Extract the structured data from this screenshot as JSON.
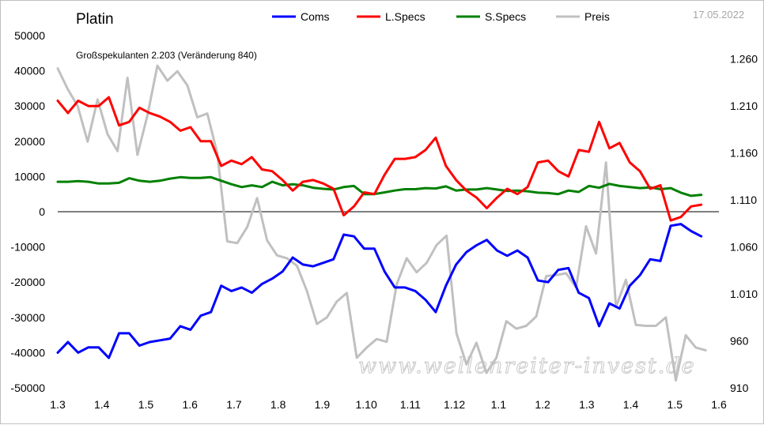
{
  "chart_data": {
    "type": "line",
    "title": "Platin",
    "date": "17.05.2022",
    "annotation": "Großspekulanten 2.203 (Veränderung 840)",
    "watermark": "www.wellenreiter-invest.de",
    "xlabels": [
      "1.3",
      "1.4",
      "1.5",
      "1.6",
      "1.7",
      "1.8",
      "1.9",
      "1.10",
      "1.11",
      "1.12",
      "1.1",
      "1.2",
      "1.3",
      "1.4",
      "1.5",
      "1.6"
    ],
    "y_left": {
      "min": -50000,
      "max": 50000,
      "step": 10000,
      "tick_labels": [
        "50000",
        "40000",
        "30000",
        "20000",
        "10000",
        "0",
        "-10000",
        "-20000",
        "-30000",
        "-40000",
        "-50000"
      ]
    },
    "y_right": {
      "min": 910,
      "max": 1285,
      "ticks": [
        1260,
        1210,
        1160,
        1110,
        1060,
        1010,
        960,
        910
      ],
      "tick_labels": [
        "1.260",
        "1.210",
        "1.160",
        "1.110",
        "1.060",
        "1.010",
        "960",
        "910"
      ]
    },
    "x_range": [
      0,
      15
    ],
    "zero_line": true,
    "series": [
      {
        "name": "Coms",
        "color": "#0000ff",
        "axis": "left",
        "values": [
          -40000,
          -37000,
          -40000,
          -38500,
          -38500,
          -41500,
          -34500,
          -34500,
          -38000,
          -37000,
          -36500,
          -36000,
          -32500,
          -33500,
          -29500,
          -28500,
          -21000,
          -22500,
          -21500,
          -23000,
          -20500,
          -19000,
          -17000,
          -13000,
          -15000,
          -15500,
          -14500,
          -13500,
          -6500,
          -7000,
          -10500,
          -10500,
          -17000,
          -21500,
          -21500,
          -22500,
          -25000,
          -28500,
          -21000,
          -15000,
          -11500,
          -9500,
          -8000,
          -11000,
          -12500,
          -11000,
          -13000,
          -19500,
          -20000,
          -16500,
          -16000,
          -23000,
          -24500,
          -32500,
          -26000,
          -27500,
          -21000,
          -18000,
          -13500,
          -14000,
          -4000,
          -3500,
          -5500,
          -7000
        ]
      },
      {
        "name": "L.Specs",
        "color": "#ff0000",
        "axis": "left",
        "values": [
          31500,
          28000,
          31500,
          30000,
          30000,
          32500,
          24500,
          25500,
          29500,
          28000,
          27000,
          25500,
          23000,
          24000,
          20000,
          20000,
          13000,
          14500,
          13500,
          15500,
          12000,
          11500,
          9000,
          6000,
          8500,
          9000,
          8000,
          6500,
          -1000,
          1500,
          5500,
          5000,
          10500,
          15000,
          15000,
          15500,
          17500,
          21000,
          13000,
          9000,
          6000,
          4000,
          1000,
          4000,
          6500,
          5000,
          7000,
          14000,
          14500,
          11500,
          10000,
          17500,
          17000,
          25500,
          18000,
          19500,
          14000,
          11500,
          6500,
          7500,
          -2500,
          -1500,
          1500,
          2000
        ]
      },
      {
        "name": "S.Specs",
        "color": "#008000",
        "axis": "left",
        "values": [
          8500,
          8500,
          8700,
          8500,
          8000,
          8000,
          8200,
          9500,
          8800,
          8500,
          8800,
          9400,
          9800,
          9600,
          9600,
          9800,
          8800,
          7800,
          7000,
          7500,
          7000,
          8500,
          7500,
          7800,
          7500,
          6800,
          6500,
          6300,
          7000,
          7300,
          5000,
          5000,
          5500,
          6000,
          6400,
          6400,
          6700,
          6600,
          7200,
          6000,
          6300,
          6300,
          6700,
          6300,
          5900,
          6000,
          5800,
          5400,
          5300,
          5000,
          6000,
          5600,
          7300,
          6800,
          7900,
          7300,
          7000,
          6700,
          6900,
          6400,
          6700,
          5400,
          4500,
          4800
        ]
      },
      {
        "name": "Preis",
        "color": "#c0c0c0",
        "axis": "right",
        "values": [
          1250,
          1228,
          1210,
          1172,
          1217,
          1180,
          1162,
          1240,
          1158,
          1200,
          1253,
          1237,
          1247,
          1232,
          1198,
          1202,
          1160,
          1066,
          1064,
          1081,
          1112,
          1067,
          1051,
          1048,
          1040,
          1013,
          978,
          985,
          1002,
          1011,
          942,
          953,
          962,
          959,
          1020,
          1048,
          1033,
          1043,
          1062,
          1072,
          968,
          935,
          958,
          926,
          942,
          981,
          973,
          976,
          986,
          1029,
          1030,
          1032,
          1017,
          1082,
          1053,
          1150,
          996,
          1025,
          977,
          976,
          976,
          985,
          918,
          966,
          953,
          950
        ],
        "x_start": 0,
        "x_end": 14.7
      }
    ]
  }
}
